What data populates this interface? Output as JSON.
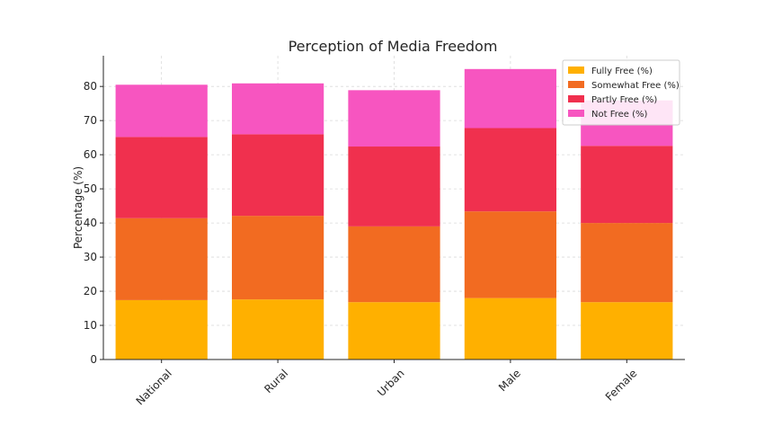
{
  "chart_data": {
    "type": "bar",
    "stacked": true,
    "title": "Perception of Media Freedom",
    "xlabel": "",
    "ylabel": "Percentage (%)",
    "ylim": [
      0,
      89
    ],
    "yticks": [
      0,
      10,
      20,
      30,
      40,
      50,
      60,
      70,
      80
    ],
    "categories": [
      "National",
      "Rural",
      "Urban",
      "Male",
      "Female"
    ],
    "series": [
      {
        "name": "Fully Free (%)",
        "color": "#FFB000",
        "values": [
          17.4,
          17.6,
          16.8,
          18.0,
          16.8
        ]
      },
      {
        "name": "Somewhat Free (%)",
        "color": "#F26B21",
        "values": [
          24.0,
          24.5,
          22.2,
          25.4,
          23.2
        ]
      },
      {
        "name": "Partly Free (%)",
        "color": "#F0304E",
        "values": [
          23.8,
          23.9,
          23.4,
          24.4,
          22.6
        ]
      },
      {
        "name": "Not Free (%)",
        "color": "#F755C0",
        "values": [
          15.3,
          14.9,
          16.5,
          17.3,
          13.3
        ]
      }
    ],
    "grid": true,
    "legend_position": "top-right"
  }
}
